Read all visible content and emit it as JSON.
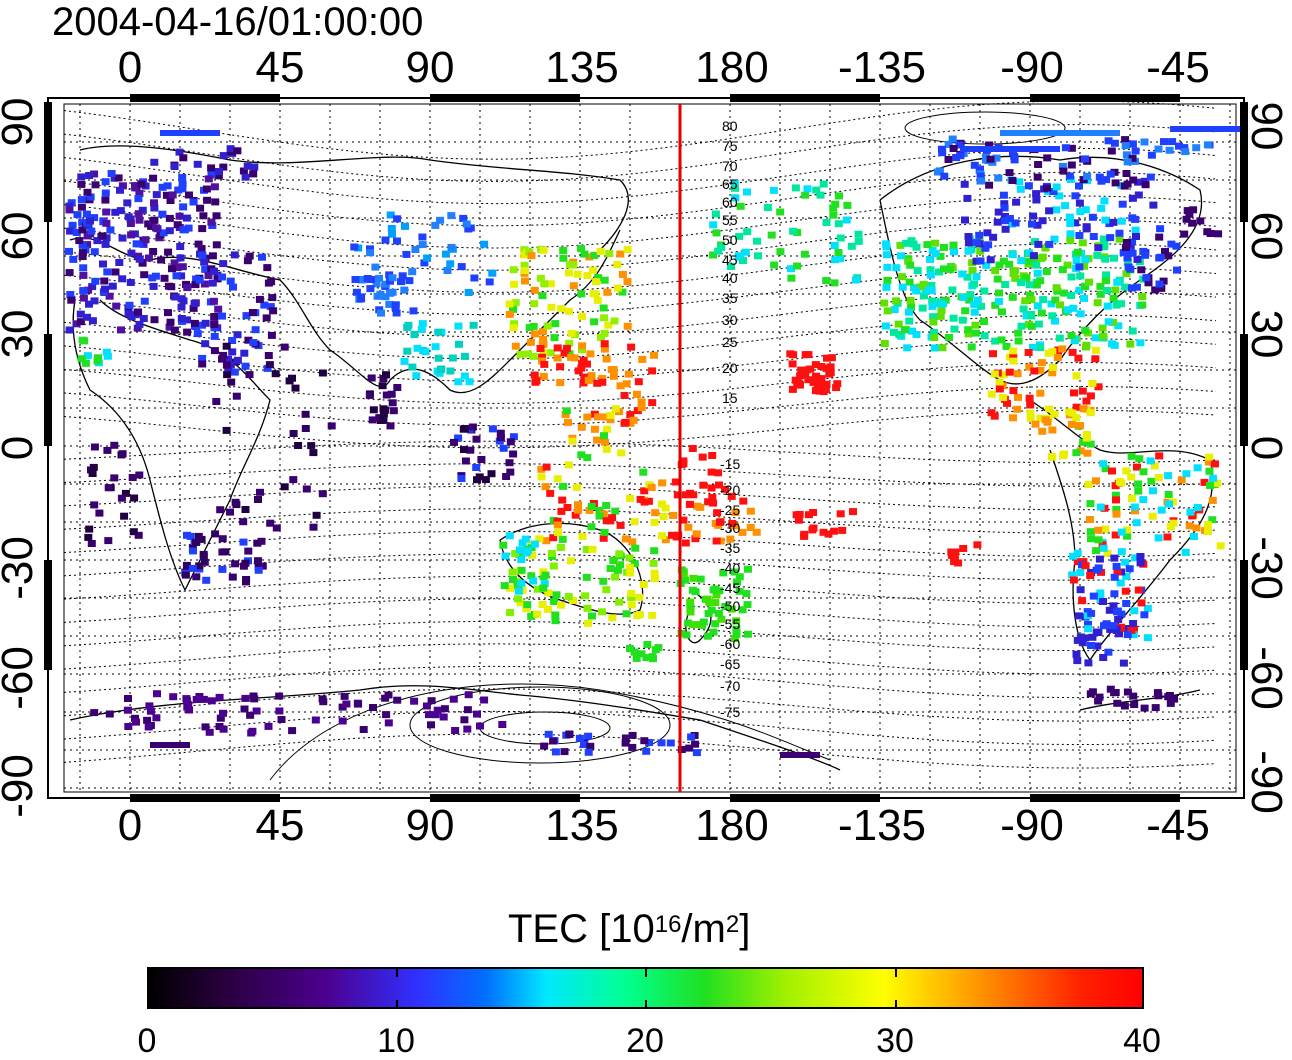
{
  "title": "2004-04-16/01:00:00",
  "map": {
    "lon_ticks": [
      "0",
      "45",
      "90",
      "135",
      "180",
      "-135",
      "-90",
      "-45"
    ],
    "lat_ticks": [
      "90",
      "60",
      "30",
      "0",
      "-30",
      "-60",
      "-90"
    ],
    "contour_labels_north": [
      "80",
      "75",
      "70",
      "65",
      "60",
      "55",
      "50",
      "45",
      "40",
      "35",
      "30",
      "25",
      "20",
      "15"
    ],
    "contour_labels_south": [
      "-15",
      "-20",
      "-25",
      "-30",
      "-35",
      "-40",
      "-45",
      "-50",
      "-55",
      "-60",
      "-65",
      "-70",
      "-75"
    ],
    "meridian_line": {
      "lon": 165,
      "color": "#e00000"
    }
  },
  "colorbar": {
    "label_main": "TEC  [10",
    "label_exp1": "16",
    "label_mid": "/m",
    "label_exp2": "2",
    "label_end": "]",
    "ticks": [
      "0",
      "10",
      "20",
      "30",
      "40"
    ],
    "min": 0,
    "max": 40
  },
  "colors": {
    "low": "#3a0070",
    "mid_blue": "#2040ff",
    "cyan": "#00e0ff",
    "green": "#20e020",
    "yellow": "#e8f000",
    "orange": "#ff9000",
    "red": "#ff1010"
  }
}
